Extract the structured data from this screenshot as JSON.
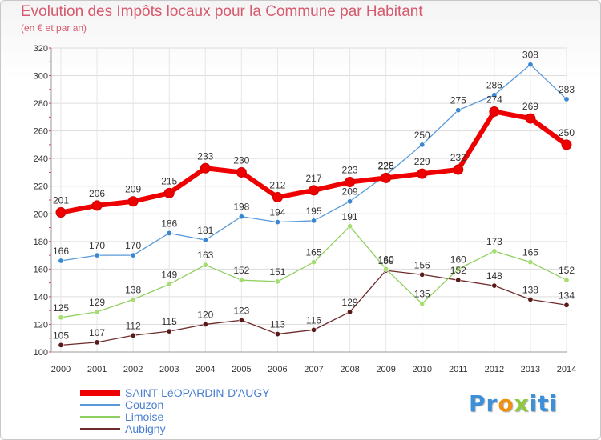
{
  "chart_data": {
    "type": "line",
    "title": "Evolution des Impôts locaux pour la Commune par Habitant",
    "subtitle": "(en € et par an)",
    "x": [
      "2000",
      "2001",
      "2002",
      "2003",
      "2004",
      "2005",
      "2006",
      "2007",
      "2008",
      "2009",
      "2010",
      "2011",
      "2012",
      "2013",
      "2014"
    ],
    "ylim": [
      100,
      320
    ],
    "yticks": [
      100,
      120,
      140,
      160,
      180,
      200,
      220,
      240,
      260,
      280,
      300,
      320
    ],
    "grid": true,
    "legend_position": "bottom-left",
    "series": [
      {
        "name": "SAINT-LéOPARDIN-D'AUGY",
        "color": "#ee0000",
        "values": [
          201,
          206,
          209,
          215,
          233,
          230,
          212,
          217,
          223,
          226,
          229,
          232,
          274,
          269,
          250
        ]
      },
      {
        "name": "Couzon",
        "color": "#5a9ad8",
        "values": [
          166,
          170,
          170,
          186,
          181,
          198,
          194,
          195,
          209,
          228,
          250,
          275,
          286,
          308,
          283
        ]
      },
      {
        "name": "Limoise",
        "color": "#90d060",
        "values": [
          125,
          129,
          138,
          149,
          163,
          152,
          151,
          165,
          191,
          160,
          135,
          160,
          173,
          165,
          152
        ]
      },
      {
        "name": "Aubigny",
        "color": "#6e2a2a",
        "values": [
          105,
          107,
          112,
          115,
          120,
          123,
          113,
          116,
          129,
          159,
          156,
          152,
          148,
          138,
          134
        ]
      }
    ]
  },
  "logo": {
    "p": "Pr",
    "o": "o",
    "x": "x",
    "rest": "iti"
  }
}
